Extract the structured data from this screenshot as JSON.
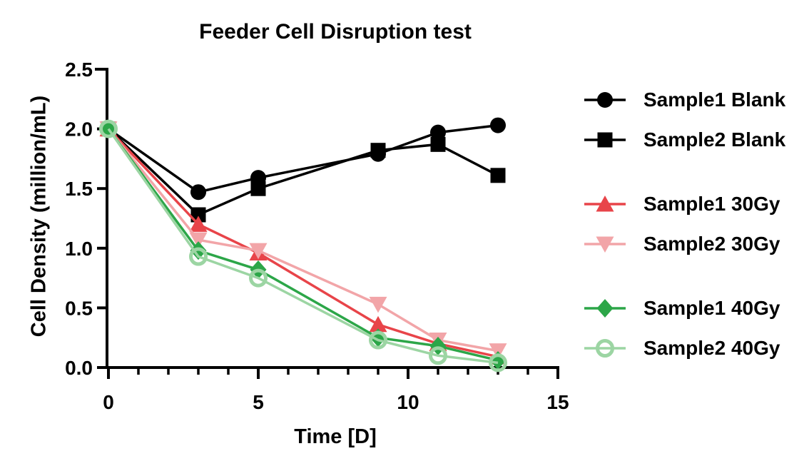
{
  "chart_data": {
    "type": "line",
    "title": "Feeder Cell Disruption test",
    "xlabel": "Time [D]",
    "ylabel": "Cell Density (million/mL)",
    "x": [
      0,
      3,
      5,
      9,
      11,
      13
    ],
    "xlim": [
      0,
      15
    ],
    "ylim": [
      0,
      2.5
    ],
    "x_ticks": [
      0,
      5,
      10,
      15
    ],
    "x_tick_labels": [
      "0",
      "5",
      "10",
      "15"
    ],
    "x_minor_ticks": [
      1,
      2,
      3,
      4,
      6,
      7,
      8,
      9,
      11,
      12,
      13,
      14
    ],
    "y_ticks": [
      0,
      0.5,
      1,
      1.5,
      2,
      2.5
    ],
    "y_tick_labels": [
      "0.0",
      "0.5",
      "1.0",
      "1.5",
      "2.0",
      "2.5"
    ],
    "grid": false,
    "legend_position": "right",
    "axis_color": "#000000",
    "series": [
      {
        "name": "Sample1 Blank",
        "color": "#000000",
        "marker": "circle",
        "values": [
          2.0,
          1.47,
          1.59,
          1.79,
          1.97,
          2.03
        ]
      },
      {
        "name": "Sample2 Blank",
        "color": "#000000",
        "marker": "square",
        "values": [
          2.0,
          1.28,
          1.5,
          1.82,
          1.87,
          1.61
        ]
      },
      {
        "name": "Sample1 30Gy",
        "color": "#e84449",
        "marker": "triangle-up",
        "values": [
          2.0,
          1.2,
          0.96,
          0.36,
          0.2,
          0.09
        ]
      },
      {
        "name": "Sample2 30Gy",
        "color": "#f2a5a8",
        "marker": "triangle-down",
        "values": [
          2.0,
          1.07,
          0.98,
          0.53,
          0.23,
          0.14
        ]
      },
      {
        "name": "Sample1 40Gy",
        "color": "#2ca648",
        "marker": "diamond",
        "values": [
          2.0,
          0.98,
          0.82,
          0.25,
          0.18,
          0.06
        ]
      },
      {
        "name": "Sample2 40Gy",
        "color": "#9cd5a3",
        "marker": "circle-open",
        "values": [
          2.0,
          0.93,
          0.75,
          0.23,
          0.1,
          0.04
        ]
      }
    ]
  }
}
